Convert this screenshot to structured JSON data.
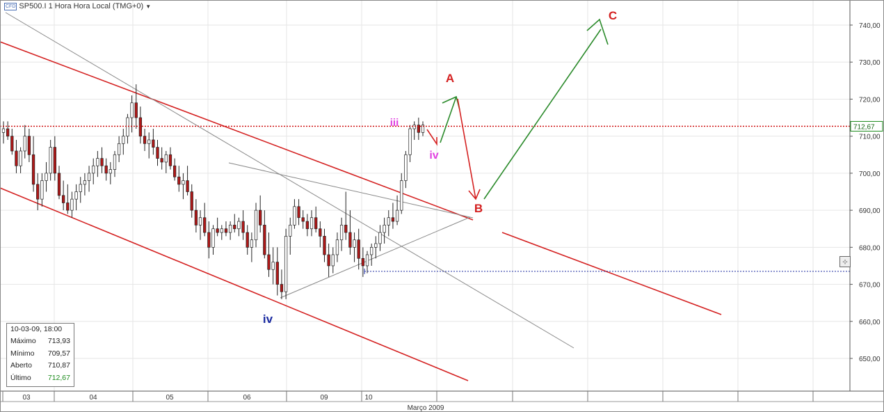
{
  "header": {
    "badge": "CFD",
    "symbol": "SP500.I 1 Hora Hora Local (TMG+0)",
    "dropdown_icon": "caret-down-icon"
  },
  "info_box": {
    "datetime": "10-03-09, 18:00",
    "rows": [
      {
        "label": "Máximo",
        "value": "713,93"
      },
      {
        "label": "Mínimo",
        "value": "709,57"
      },
      {
        "label": "Aberto",
        "value": "710,87"
      },
      {
        "label": "Último",
        "value": "712,67"
      }
    ]
  },
  "chart_data": {
    "type": "candlestick",
    "title": "SP500.I 1 Hora Hora Local (TMG+0)",
    "xlabel": "Março 2009",
    "ylim": [
      640,
      750
    ],
    "y_ticks": [
      "650,00",
      "660,00",
      "670,00",
      "680,00",
      "690,00",
      "700,00",
      "710,00",
      "720,00",
      "730,00",
      "740,00"
    ],
    "y_tick_values": [
      650,
      660,
      670,
      680,
      690,
      700,
      710,
      720,
      730,
      740
    ],
    "x_ticks": [
      "03",
      "04",
      "05",
      "06",
      "09",
      "10"
    ],
    "last_price": {
      "label": "712,67",
      "value": 712.67,
      "color": "#cc0000"
    },
    "support_level": 673.5,
    "grid": true,
    "colors": {
      "up": "#ffffff",
      "down": "#b01818",
      "channel": "#d42020",
      "trend": "#888888",
      "wave_up": "#2a8a2a",
      "wave_b": "#d42020"
    },
    "candles_ohlc": [
      [
        711,
        714,
        708,
        712
      ],
      [
        712,
        714,
        709,
        710
      ],
      [
        710,
        712,
        705,
        706
      ],
      [
        706,
        709,
        700,
        702
      ],
      [
        702,
        707,
        700,
        706
      ],
      [
        706,
        713,
        704,
        710
      ],
      [
        710,
        712,
        703,
        705
      ],
      [
        705,
        710,
        695,
        697
      ],
      [
        697,
        700,
        690,
        693
      ],
      [
        693,
        700,
        691,
        698
      ],
      [
        698,
        703,
        695,
        700
      ],
      [
        700,
        709,
        698,
        707
      ],
      [
        707,
        710,
        698,
        700
      ],
      [
        700,
        702,
        693,
        694
      ],
      [
        694,
        698,
        690,
        692
      ],
      [
        692,
        697,
        689,
        690
      ],
      [
        690,
        695,
        688,
        693
      ],
      [
        693,
        697,
        690,
        695
      ],
      [
        695,
        699,
        692,
        697
      ],
      [
        697,
        700,
        694,
        698
      ],
      [
        698,
        702,
        695,
        700
      ],
      [
        700,
        704,
        697,
        702
      ],
      [
        702,
        706,
        699,
        704
      ],
      [
        704,
        707,
        700,
        702
      ],
      [
        702,
        704,
        698,
        700
      ],
      [
        700,
        703,
        697,
        701
      ],
      [
        701,
        706,
        699,
        705
      ],
      [
        705,
        710,
        703,
        708
      ],
      [
        708,
        712,
        705,
        710
      ],
      [
        710,
        716,
        708,
        715
      ],
      [
        715,
        721,
        711,
        719
      ],
      [
        719,
        724,
        712,
        715
      ],
      [
        715,
        718,
        708,
        710
      ],
      [
        710,
        712,
        706,
        708
      ],
      [
        708,
        711,
        704,
        709
      ],
      [
        709,
        712,
        705,
        707
      ],
      [
        707,
        709,
        702,
        704
      ],
      [
        704,
        707,
        701,
        703
      ],
      [
        703,
        706,
        700,
        705
      ],
      [
        705,
        707,
        701,
        702
      ],
      [
        702,
        704,
        698,
        699
      ],
      [
        699,
        702,
        695,
        697
      ],
      [
        697,
        700,
        693,
        698
      ],
      [
        698,
        702,
        694,
        695
      ],
      [
        695,
        697,
        688,
        690
      ],
      [
        690,
        693,
        684,
        686
      ],
      [
        686,
        690,
        682,
        688
      ],
      [
        688,
        692,
        683,
        684
      ],
      [
        684,
        687,
        677,
        680
      ],
      [
        680,
        686,
        678,
        685
      ],
      [
        685,
        688,
        683,
        684
      ],
      [
        684,
        686,
        682,
        685
      ],
      [
        685,
        687,
        683,
        684
      ],
      [
        684,
        687,
        682,
        686
      ],
      [
        686,
        689,
        684,
        685
      ],
      [
        685,
        688,
        683,
        687
      ],
      [
        687,
        690,
        682,
        684
      ],
      [
        684,
        686,
        678,
        680
      ],
      [
        680,
        684,
        676,
        682
      ],
      [
        682,
        692,
        680,
        690
      ],
      [
        690,
        694,
        684,
        686
      ],
      [
        686,
        690,
        677,
        678
      ],
      [
        678,
        684,
        672,
        674
      ],
      [
        674,
        680,
        670,
        676
      ],
      [
        676,
        680,
        667,
        670
      ],
      [
        670,
        674,
        666,
        668
      ],
      [
        668,
        685,
        666,
        683
      ],
      [
        683,
        688,
        678,
        686
      ],
      [
        686,
        693,
        685,
        691
      ],
      [
        691,
        693,
        686,
        688
      ],
      [
        688,
        690,
        685,
        687
      ],
      [
        687,
        689,
        683,
        685
      ],
      [
        685,
        690,
        683,
        688
      ],
      [
        688,
        691,
        684,
        685
      ],
      [
        685,
        687,
        680,
        683
      ],
      [
        683,
        685,
        676,
        678
      ],
      [
        678,
        681,
        672,
        675
      ],
      [
        675,
        680,
        673,
        678
      ],
      [
        678,
        684,
        676,
        682
      ],
      [
        682,
        688,
        679,
        686
      ],
      [
        686,
        695,
        682,
        684
      ],
      [
        684,
        690,
        678,
        680
      ],
      [
        680,
        684,
        676,
        682
      ],
      [
        682,
        685,
        674,
        677
      ],
      [
        677,
        680,
        672,
        675
      ],
      [
        675,
        679,
        673,
        678
      ],
      [
        678,
        681,
        675,
        680
      ],
      [
        680,
        683,
        677,
        681
      ],
      [
        681,
        686,
        679,
        684
      ],
      [
        684,
        688,
        681,
        686
      ],
      [
        686,
        690,
        683,
        688
      ],
      [
        688,
        692,
        685,
        687
      ],
      [
        687,
        694,
        686,
        690
      ],
      [
        690,
        700,
        689,
        698
      ],
      [
        698,
        706,
        696,
        705
      ],
      [
        705,
        713,
        703,
        712
      ],
      [
        712,
        714,
        709,
        713
      ],
      [
        713,
        715,
        709,
        711
      ],
      [
        711,
        714,
        710,
        713
      ]
    ],
    "price_line_value": 712.67,
    "annotations": [
      {
        "text": "iii",
        "color": "#e040e0"
      },
      {
        "text": "iv",
        "color": "#e040e0"
      },
      {
        "text": "iv",
        "color": "#1a2aa0"
      },
      {
        "text": "A",
        "color": "#d42020"
      },
      {
        "text": "B",
        "color": "#d42020"
      },
      {
        "text": "C",
        "color": "#d42020"
      }
    ]
  }
}
